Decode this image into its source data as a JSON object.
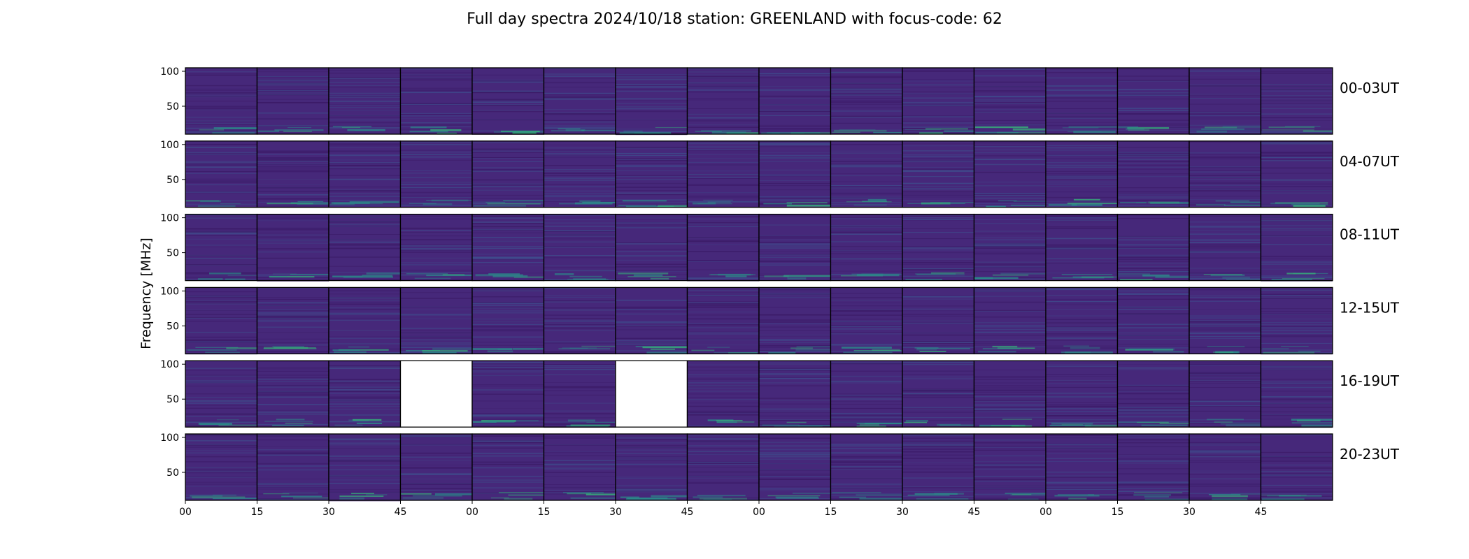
{
  "chart_data": {
    "type": "heatmap",
    "title": "Full day spectra 2024/10/18 station: GREENLAND with focus-code: 62",
    "ylabel": "Frequency [MHz]",
    "xlabel": "",
    "ylim": [
      10,
      105
    ],
    "y_ticks": [
      "100",
      "50"
    ],
    "x_ticks": [
      "00",
      "15",
      "30",
      "45",
      "00",
      "15",
      "30",
      "45",
      "00",
      "15",
      "30",
      "45",
      "00",
      "15",
      "30",
      "45"
    ],
    "colormap": "viridis",
    "rows": [
      {
        "label": "00-03UT",
        "missing_panels": []
      },
      {
        "label": "04-07UT",
        "missing_panels": []
      },
      {
        "label": "08-11UT",
        "missing_panels": []
      },
      {
        "label": "12-15UT",
        "missing_panels": []
      },
      {
        "label": "16-19UT",
        "missing_panels": [
          3,
          6
        ]
      },
      {
        "label": "20-23UT",
        "missing_panels": []
      }
    ],
    "panels_per_row": 16
  },
  "colors": {
    "background_low": "#3b1a67",
    "background": "#46287a",
    "mid": "#3f4c8c",
    "teal": "#2a8d8a",
    "bright": "#35b779",
    "missing": "#ffffff"
  }
}
